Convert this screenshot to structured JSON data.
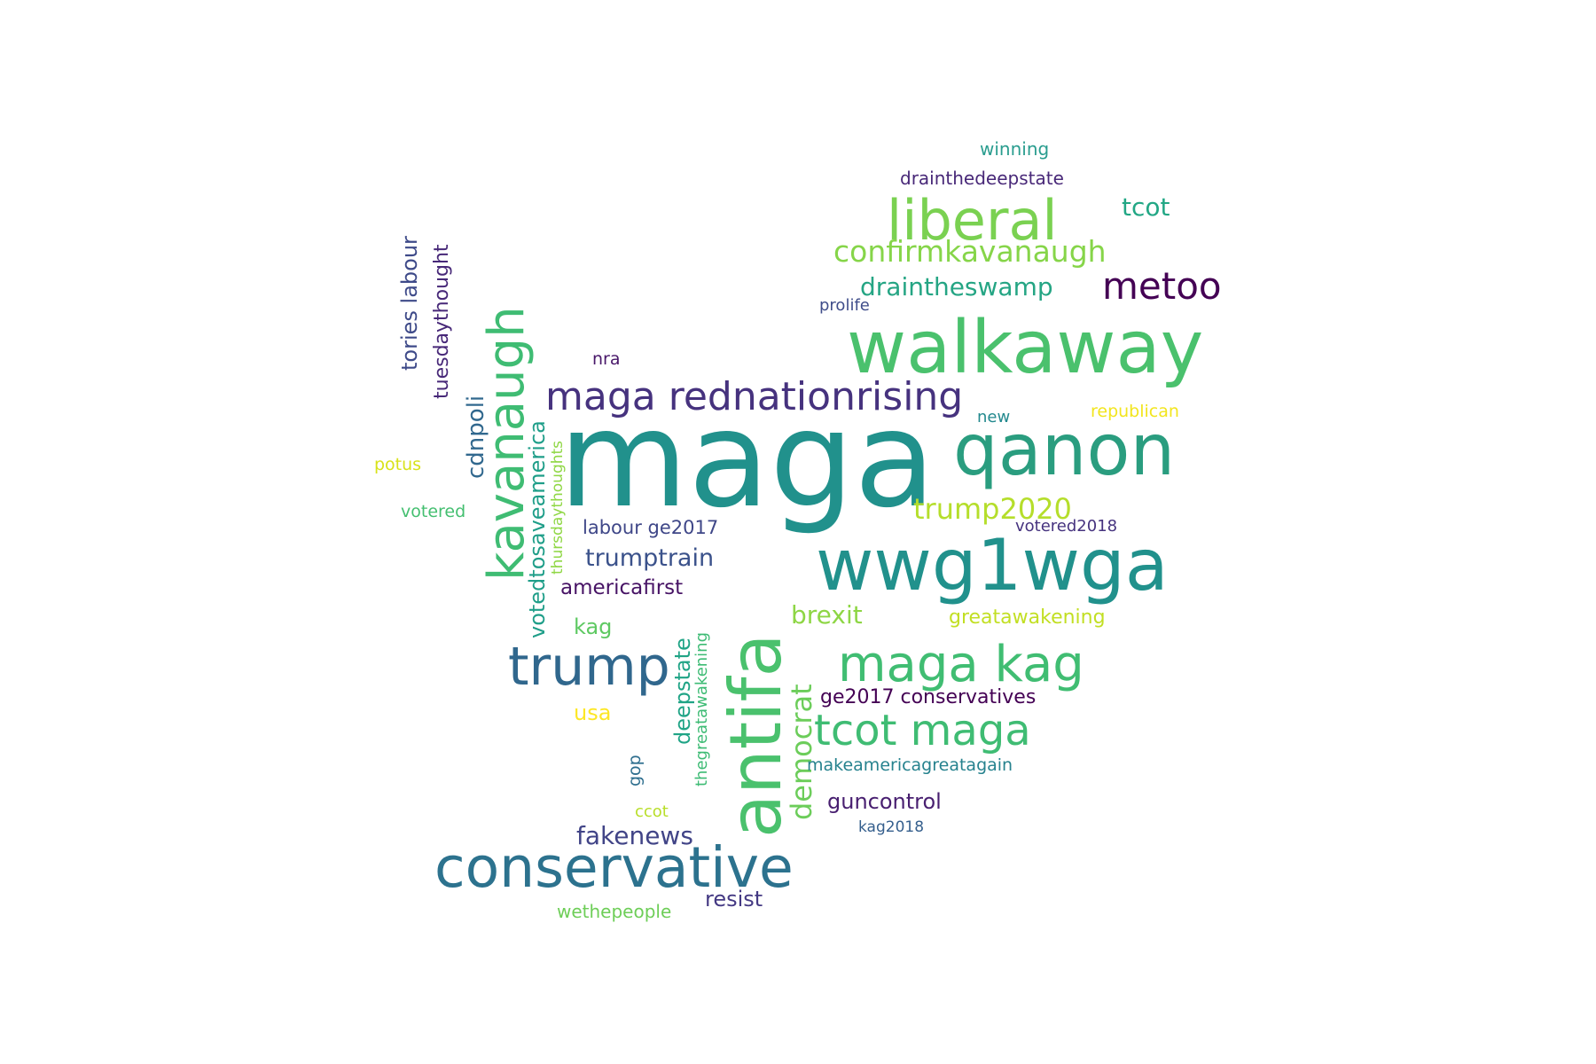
{
  "words": [
    {
      "text": "maga",
      "color": "#21918c"
    },
    {
      "text": "walkaway",
      "color": "#4ac16d"
    },
    {
      "text": "qanon",
      "color": "#2a9d7f"
    },
    {
      "text": "wwg1wga",
      "color": "#21918c"
    },
    {
      "text": "antifa",
      "color": "#4ac16d"
    },
    {
      "text": "conservative",
      "color": "#2c728e"
    },
    {
      "text": "liberal",
      "color": "#7ad151"
    },
    {
      "text": "kavanaugh",
      "color": "#3fbc73"
    },
    {
      "text": "trump",
      "color": "#30678d"
    },
    {
      "text": "maga kag",
      "color": "#40bd72"
    },
    {
      "text": "maga rednationrising",
      "color": "#46327e"
    },
    {
      "text": "tcot maga",
      "color": "#3fbc73"
    },
    {
      "text": "metoo",
      "color": "#440154"
    },
    {
      "text": "confirmkavanaugh",
      "color": "#86d549"
    },
    {
      "text": "trump2020",
      "color": "#b5de2b"
    },
    {
      "text": "democrat",
      "color": "#6ccd5a"
    },
    {
      "text": "draintheswamp",
      "color": "#25a584"
    },
    {
      "text": "tcot",
      "color": "#22a785"
    },
    {
      "text": "deepstate",
      "color": "#20a486"
    },
    {
      "text": "votedtosaveamerica",
      "color": "#1f9e89"
    },
    {
      "text": "cdnpoli",
      "color": "#31688e"
    },
    {
      "text": "tories labour",
      "color": "#3e4a89"
    },
    {
      "text": "tuesdaythought",
      "color": "#472878"
    },
    {
      "text": "thursdaythoughts",
      "color": "#8fd744"
    },
    {
      "text": "thegreatawakening",
      "color": "#3dbb74"
    },
    {
      "text": "trumptrain",
      "color": "#3b528b"
    },
    {
      "text": "americafirst",
      "color": "#471365"
    },
    {
      "text": "brexit",
      "color": "#8ed645"
    },
    {
      "text": "greatawakening",
      "color": "#c2df23"
    },
    {
      "text": "fakenews",
      "color": "#414487"
    },
    {
      "text": "resist",
      "color": "#443983"
    },
    {
      "text": "guncontrol",
      "color": "#481f70"
    },
    {
      "text": "ge2017 conservatives",
      "color": "#440154"
    },
    {
      "text": "labour ge2017",
      "color": "#3f4788"
    },
    {
      "text": "drainthedeepstate",
      "color": "#482878"
    },
    {
      "text": "winning",
      "color": "#2a9d8f"
    },
    {
      "text": "prolife",
      "color": "#3f4d8a"
    },
    {
      "text": "kag",
      "color": "#5ec962"
    },
    {
      "text": "usa",
      "color": "#fde725"
    },
    {
      "text": "republican",
      "color": "#f2e51d"
    },
    {
      "text": "potus",
      "color": "#d8e219"
    },
    {
      "text": "new",
      "color": "#23898e"
    },
    {
      "text": "votered",
      "color": "#44bf70"
    },
    {
      "text": "votered2018",
      "color": "#46337f"
    },
    {
      "text": "nra",
      "color": "#481769"
    },
    {
      "text": "makeamericagreatagain",
      "color": "#26828e"
    },
    {
      "text": "gop",
      "color": "#2e6e8e"
    },
    {
      "text": "ccot",
      "color": "#b8de29"
    },
    {
      "text": "kag2018",
      "color": "#355f8d"
    },
    {
      "text": "wethepeople",
      "color": "#6ece58"
    }
  ]
}
